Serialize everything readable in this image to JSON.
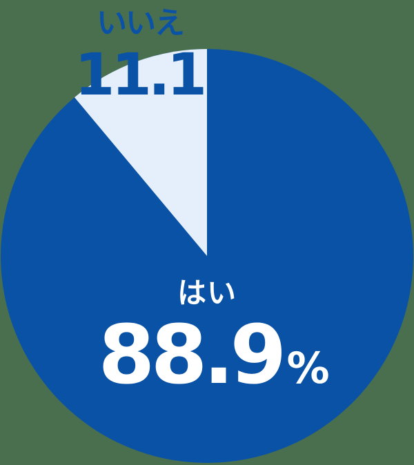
{
  "chart_data": {
    "type": "pie",
    "title": "",
    "categories": [
      "はい",
      "いいえ"
    ],
    "values": [
      88.9,
      11.1
    ],
    "unit": "%",
    "value_texts": [
      "88.9",
      "11.1"
    ],
    "slice_colors": [
      "#0a52a6",
      "#e5effc"
    ],
    "start_angle_deg_of_small_slice": -40,
    "rotation": "small slice ends at 12 o'clock, big slice fills clockwise from top",
    "legend_position": "labels drawn on/next to slices"
  },
  "colors": {
    "background": "#4a6f4e",
    "blue_dark": "#0a52a6",
    "blue_pale": "#e5effc",
    "text_on_dark": "#ffffff"
  },
  "pie": {
    "yes_label": "はい",
    "yes_value": "88.9",
    "yes_unit": "%",
    "no_label": "いいえ",
    "no_value": "11.1",
    "no_unit": "%"
  }
}
